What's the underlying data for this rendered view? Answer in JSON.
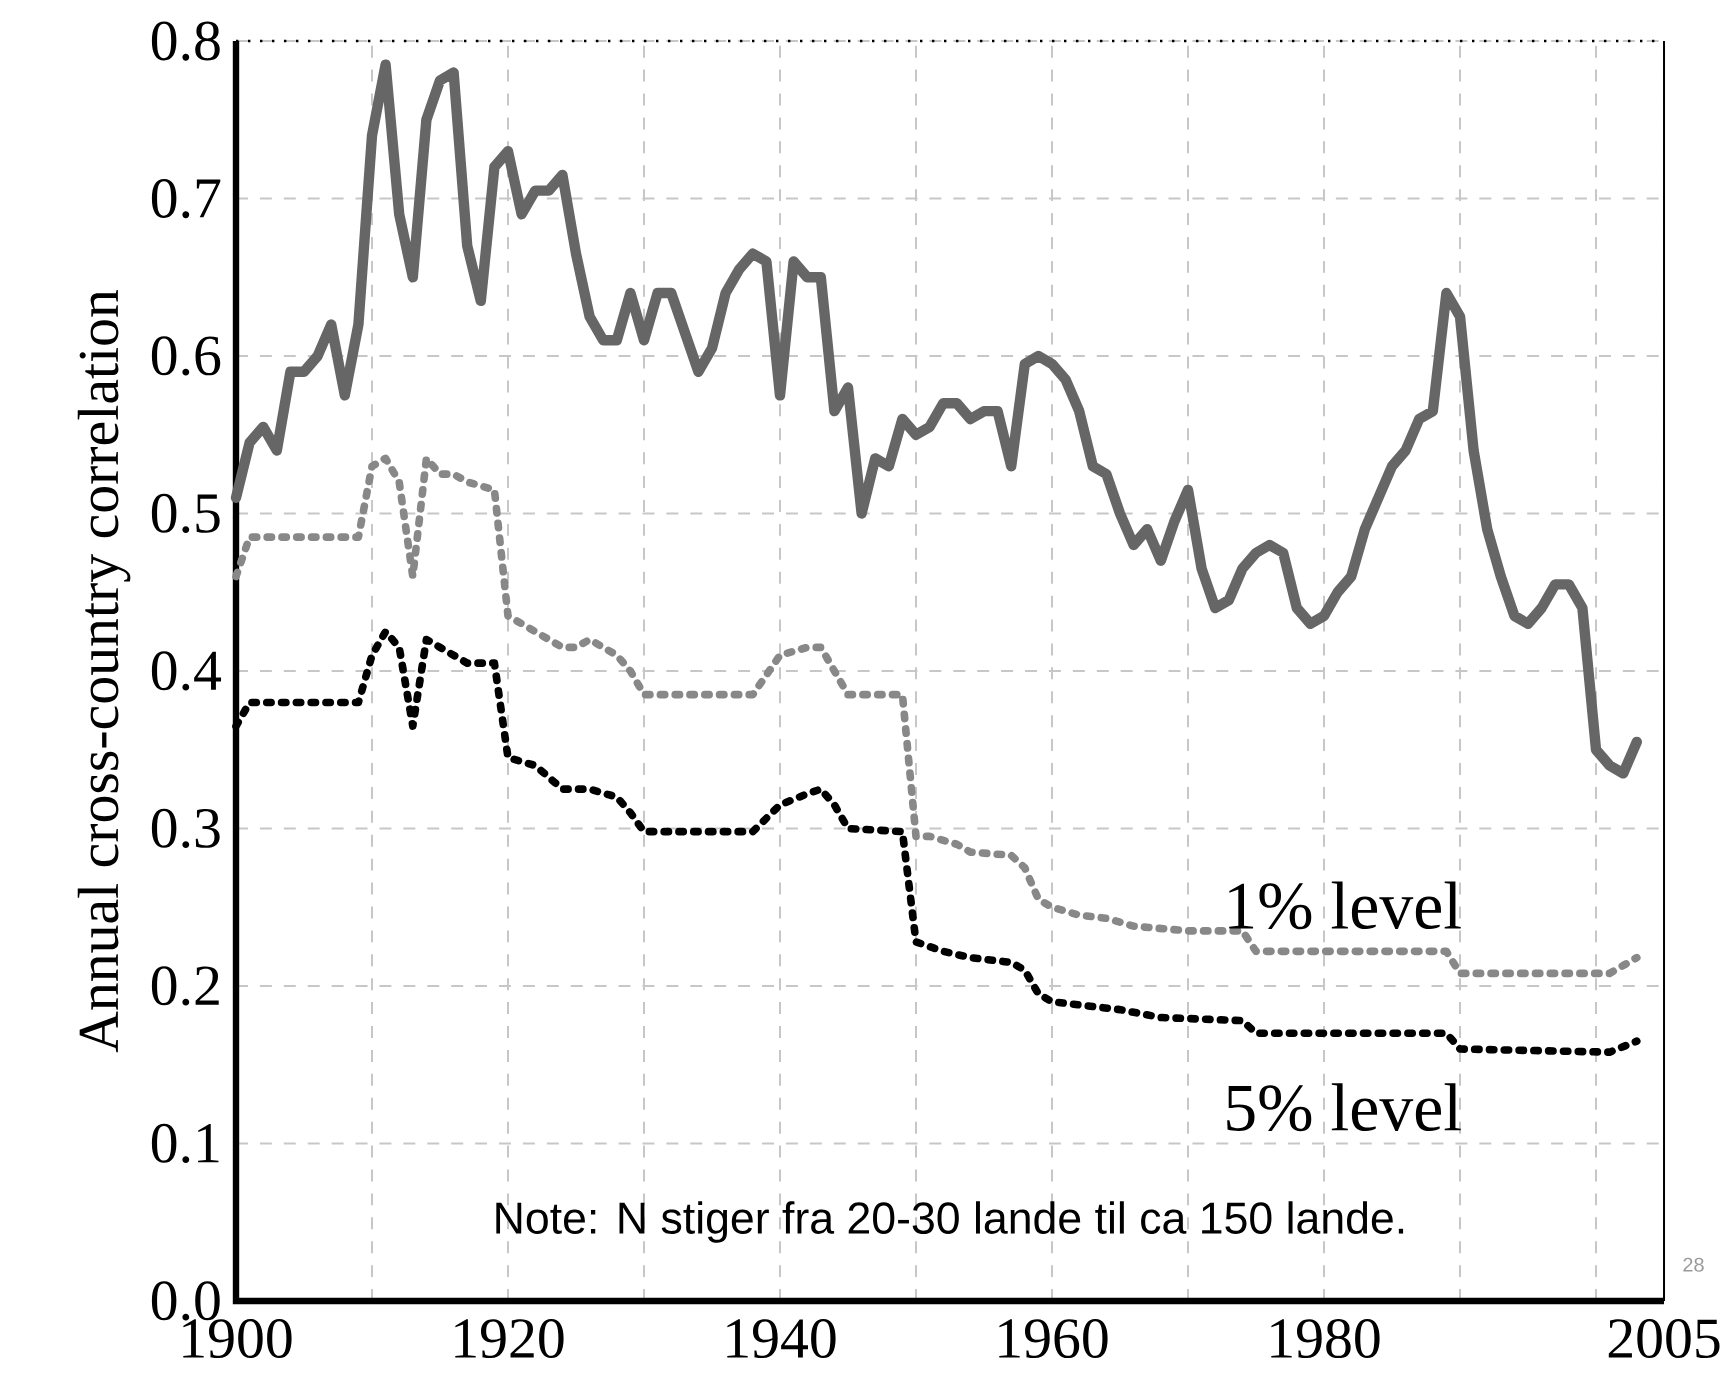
{
  "chart_data": {
    "type": "line",
    "ylabel": "Annual cross-country correlation",
    "xlim": [
      1900,
      2005
    ],
    "ylim": [
      0,
      0.8
    ],
    "xticks": [
      1900,
      {
        "value": 1910,
        "label": null
      },
      1920,
      {
        "value": 1930,
        "label": null
      },
      1940,
      {
        "value": 1950,
        "label": null
      },
      1960,
      {
        "value": 1970,
        "label": null
      },
      1980,
      {
        "value": 1990,
        "label": null
      },
      {
        "value": 2000,
        "label": null
      },
      2005
    ],
    "yticks": [
      {
        "value": 0,
        "label": "0.0"
      },
      0.1,
      0.2,
      0.3,
      0.4,
      0.5,
      0.6,
      0.7,
      0.8
    ],
    "grid": true,
    "series": [
      {
        "color": "#666666",
        "line_style": "solid",
        "x": [
          1900,
          1901,
          1902,
          1903,
          1904,
          1905,
          1906,
          1907,
          1908,
          1909,
          1910,
          1911,
          1912,
          1913,
          1914,
          1915,
          1916,
          1917,
          1918,
          1919,
          1920,
          1921,
          1922,
          1923,
          1924,
          1925,
          1926,
          1927,
          1928,
          1929,
          1930,
          1931,
          1932,
          1933,
          1934,
          1935,
          1936,
          1937,
          1938,
          1939,
          1940,
          1941,
          1942,
          1943,
          1944,
          1945,
          1946,
          1947,
          1948,
          1949,
          1950,
          1951,
          1952,
          1953,
          1954,
          1955,
          1956,
          1957,
          1958,
          1959,
          1960,
          1961,
          1962,
          1963,
          1964,
          1965,
          1966,
          1967,
          1968,
          1969,
          1970,
          1971,
          1972,
          1973,
          1974,
          1975,
          1976,
          1977,
          1978,
          1979,
          1980,
          1981,
          1982,
          1983,
          1984,
          1985,
          1986,
          1987,
          1988,
          1989,
          1990,
          1991,
          1992,
          1993,
          1994,
          1995,
          1996,
          1997,
          1998,
          1999,
          2000,
          2001,
          2002,
          2003
        ],
        "values": [
          0.51,
          0.545,
          0.555,
          0.54,
          0.59,
          0.59,
          0.6,
          0.62,
          0.575,
          0.62,
          0.74,
          0.785,
          0.69,
          0.65,
          0.75,
          0.775,
          0.78,
          0.67,
          0.635,
          0.72,
          0.73,
          0.69,
          0.705,
          0.705,
          0.715,
          0.665,
          0.625,
          0.61,
          0.61,
          0.64,
          0.61,
          0.64,
          0.64,
          0.615,
          0.59,
          0.605,
          0.64,
          0.655,
          0.665,
          0.66,
          0.575,
          0.66,
          0.65,
          0.65,
          0.565,
          0.58,
          0.5,
          0.535,
          0.53,
          0.56,
          0.55,
          0.555,
          0.57,
          0.57,
          0.56,
          0.565,
          0.565,
          0.53,
          0.595,
          0.6,
          0.595,
          0.585,
          0.565,
          0.53,
          0.525,
          0.5,
          0.48,
          0.49,
          0.47,
          0.495,
          0.515,
          0.465,
          0.44,
          0.445,
          0.465,
          0.475,
          0.48,
          0.475,
          0.44,
          0.43,
          0.435,
          0.45,
          0.46,
          0.49,
          0.51,
          0.53,
          0.54,
          0.56,
          0.565,
          0.64,
          0.625,
          0.54,
          0.49,
          0.46,
          0.435,
          0.43,
          0.44,
          0.455,
          0.455,
          0.44,
          0.35,
          0.34,
          0.335,
          0.355
        ]
      },
      {
        "name": "1% level",
        "color": "#888888",
        "line_style": "dotted",
        "x": [
          1900,
          1901,
          1909,
          1910,
          1911,
          1912,
          1913,
          1914,
          1915,
          1916,
          1917,
          1919,
          1920,
          1921,
          1922,
          1924,
          1925,
          1926,
          1928,
          1929,
          1930,
          1938,
          1940,
          1942,
          1943,
          1944,
          1945,
          1949,
          1950,
          1951,
          1953,
          1954,
          1957,
          1958,
          1959,
          1960,
          1962,
          1964,
          1966,
          1970,
          1974,
          1975,
          1989,
          1990,
          2001,
          2003
        ],
        "values": [
          0.46,
          0.485,
          0.485,
          0.53,
          0.535,
          0.52,
          0.46,
          0.535,
          0.525,
          0.525,
          0.52,
          0.515,
          0.435,
          0.43,
          0.425,
          0.415,
          0.415,
          0.42,
          0.41,
          0.4,
          0.385,
          0.385,
          0.41,
          0.415,
          0.415,
          0.4,
          0.385,
          0.385,
          0.295,
          0.295,
          0.29,
          0.285,
          0.283,
          0.275,
          0.255,
          0.25,
          0.245,
          0.243,
          0.238,
          0.235,
          0.235,
          0.222,
          0.222,
          0.208,
          0.208,
          0.218
        ]
      },
      {
        "name": "5% level",
        "color": "#000000",
        "line_style": "dotted",
        "x": [
          1900,
          1901,
          1909,
          1910,
          1911,
          1912,
          1913,
          1914,
          1915,
          1917,
          1919,
          1920,
          1922,
          1924,
          1926,
          1928,
          1929,
          1930,
          1938,
          1940,
          1942,
          1943,
          1944,
          1945,
          1949,
          1950,
          1952,
          1954,
          1957,
          1958,
          1959,
          1960,
          1962,
          1965,
          1968,
          1974,
          1975,
          1989,
          1990,
          2001,
          2003
        ],
        "values": [
          0.365,
          0.38,
          0.38,
          0.41,
          0.425,
          0.415,
          0.365,
          0.42,
          0.415,
          0.405,
          0.405,
          0.345,
          0.34,
          0.325,
          0.325,
          0.32,
          0.31,
          0.298,
          0.298,
          0.315,
          0.322,
          0.325,
          0.315,
          0.3,
          0.298,
          0.228,
          0.222,
          0.218,
          0.215,
          0.21,
          0.195,
          0.19,
          0.188,
          0.185,
          0.18,
          0.178,
          0.17,
          0.17,
          0.16,
          0.158,
          0.165
        ]
      }
    ],
    "annotations": [
      "Note: N stiger fra 20-30 lande til ca 150 lande.",
      "28"
    ]
  }
}
